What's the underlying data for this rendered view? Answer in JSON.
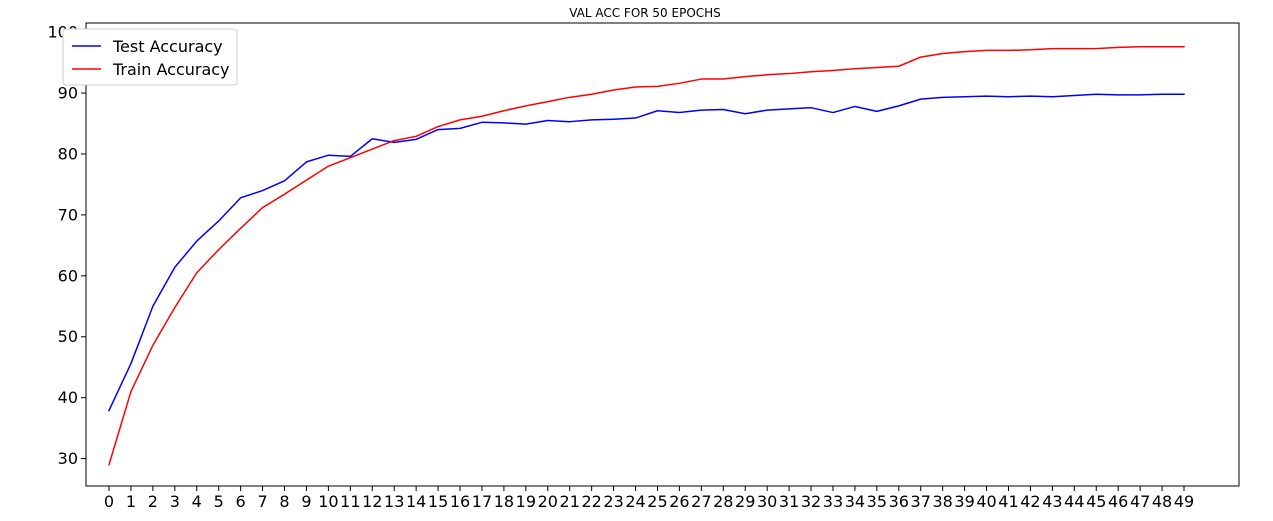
{
  "chart_data": {
    "type": "line",
    "title": "VAL ACC FOR 50 EPOCHS",
    "xlabel": "",
    "ylabel": "",
    "x": [
      0,
      1,
      2,
      3,
      4,
      5,
      6,
      7,
      8,
      9,
      10,
      11,
      12,
      13,
      14,
      15,
      16,
      17,
      18,
      19,
      20,
      21,
      22,
      23,
      24,
      25,
      26,
      27,
      28,
      29,
      30,
      31,
      32,
      33,
      34,
      35,
      36,
      37,
      38,
      39,
      40,
      41,
      42,
      43,
      44,
      45,
      46,
      47,
      48,
      49
    ],
    "xticks": [
      "0",
      "1",
      "2",
      "3",
      "4",
      "5",
      "6",
      "7",
      "8",
      "9",
      "10",
      "11",
      "12",
      "13",
      "14",
      "15",
      "16",
      "17",
      "18",
      "19",
      "20",
      "21",
      "22",
      "23",
      "24",
      "25",
      "26",
      "27",
      "28",
      "29",
      "30",
      "31",
      "32",
      "33",
      "34",
      "35",
      "36",
      "37",
      "38",
      "39",
      "40",
      "41",
      "42",
      "43",
      "44",
      "45",
      "46",
      "47",
      "48",
      "49"
    ],
    "ylim": [
      25.5,
      101.5
    ],
    "yticks": [
      "30",
      "40",
      "50",
      "60",
      "70",
      "80",
      "90",
      "100"
    ],
    "ytick_values": [
      30,
      40,
      50,
      60,
      70,
      80,
      90,
      100
    ],
    "legend_position": "upper-left",
    "grid": false,
    "series": [
      {
        "name": "Test Accuracy",
        "color": "#0000ff",
        "values": [
          37.9,
          45.6,
          55.0,
          61.4,
          65.7,
          69.0,
          72.8,
          74.0,
          75.6,
          78.7,
          79.8,
          79.6,
          82.5,
          81.9,
          82.4,
          84.0,
          84.2,
          85.2,
          85.1,
          84.9,
          85.5,
          85.3,
          85.6,
          85.7,
          85.9,
          87.1,
          86.8,
          87.2,
          87.3,
          86.6,
          87.2,
          87.4,
          87.6,
          86.8,
          87.8,
          87.0,
          87.9,
          89.0,
          89.3,
          89.4,
          89.5,
          89.4,
          89.5,
          89.4,
          89.6,
          89.8,
          89.7,
          89.7,
          89.8,
          89.8
        ]
      },
      {
        "name": "Train Accuracy",
        "color": "#ff0000",
        "values": [
          29.0,
          41.0,
          48.6,
          54.8,
          60.5,
          64.3,
          67.8,
          71.2,
          73.4,
          75.7,
          78.0,
          79.4,
          80.8,
          82.2,
          82.9,
          84.5,
          85.6,
          86.2,
          87.1,
          87.9,
          88.6,
          89.3,
          89.8,
          90.5,
          91.0,
          91.1,
          91.6,
          92.3,
          92.3,
          92.7,
          93.0,
          93.2,
          93.5,
          93.7,
          94.0,
          94.2,
          94.4,
          95.9,
          96.5,
          96.8,
          97.0,
          97.0,
          97.1,
          97.3,
          97.3,
          97.3,
          97.5,
          97.6,
          97.6,
          97.6
        ]
      }
    ]
  }
}
